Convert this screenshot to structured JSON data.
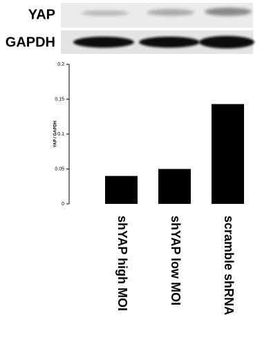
{
  "blot": {
    "labels": [
      "YAP",
      "GAPDH"
    ]
  },
  "chart_data": {
    "type": "bar",
    "ylabel": "YAP / GAPDH",
    "categories": [
      "shYAP high MOI",
      "shYAP low MOI",
      "scramble shRNA"
    ],
    "values": [
      0.04,
      0.05,
      0.143
    ],
    "color": "#000000",
    "ylim": [
      0,
      0.2
    ],
    "yticks": [
      0,
      0.05,
      0.1,
      0.15,
      0.2
    ],
    "grid": false
  }
}
